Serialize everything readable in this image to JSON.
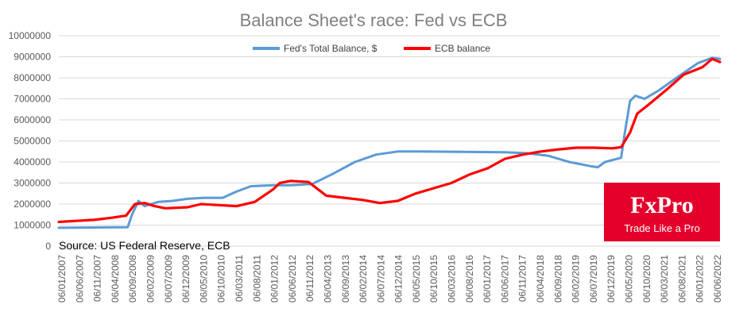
{
  "chart_data": {
    "type": "line",
    "title": "Balance Sheet's race: Fed vs ECB",
    "xlabel": "",
    "ylabel": "",
    "ylim": [
      0,
      10000000
    ],
    "yticks": [
      0,
      1000000,
      2000000,
      3000000,
      4000000,
      5000000,
      6000000,
      7000000,
      8000000,
      9000000,
      10000000
    ],
    "ytick_labels": [
      "0",
      "1000000",
      "2000000",
      "3000000",
      "4000000",
      "5000000",
      "6000000",
      "7000000",
      "8000000",
      "9000000",
      "10000000"
    ],
    "xlim": [
      "2007-01-06",
      "2022-06-06"
    ],
    "xtick_labels": [
      "06/01/2007",
      "06/06/2007",
      "06/11/2007",
      "06/04/2008",
      "06/09/2008",
      "06/02/2009",
      "06/07/2009",
      "06/12/2009",
      "06/05/2010",
      "06/10/2010",
      "06/03/2011",
      "06/08/2011",
      "06/01/2012",
      "06/06/2012",
      "06/11/2012",
      "06/04/2013",
      "06/09/2013",
      "06/02/2014",
      "06/07/2014",
      "06/12/2014",
      "06/05/2015",
      "06/10/2015",
      "06/03/2016",
      "06/08/2016",
      "06/01/2017",
      "06/06/2017",
      "06/11/2017",
      "06/04/2018",
      "06/09/2018",
      "06/02/2019",
      "06/07/2019",
      "06/12/2019",
      "06/05/2020",
      "06/10/2020",
      "06/03/2021",
      "06/08/2021",
      "06/01/2022",
      "06/06/2022"
    ],
    "grid": true,
    "legend_position": "top",
    "annotation": "Source: US Federal Reserve, ECB",
    "series": [
      {
        "name": "Fed's Total Balance, $",
        "color": "#5b9bd5",
        "points": [
          [
            "2007-01-06",
            870000
          ],
          [
            "2008-08-15",
            900000
          ],
          [
            "2008-09-20",
            1500000
          ],
          [
            "2008-11-15",
            2150000
          ],
          [
            "2009-01-06",
            1900000
          ],
          [
            "2009-03-01",
            2000000
          ],
          [
            "2009-05-01",
            2100000
          ],
          [
            "2009-09-01",
            2150000
          ],
          [
            "2010-01-06",
            2250000
          ],
          [
            "2010-06-01",
            2300000
          ],
          [
            "2010-11-01",
            2300000
          ],
          [
            "2011-03-01",
            2600000
          ],
          [
            "2011-07-01",
            2850000
          ],
          [
            "2012-01-06",
            2900000
          ],
          [
            "2012-06-01",
            2900000
          ],
          [
            "2012-12-01",
            2950000
          ],
          [
            "2013-06-01",
            3450000
          ],
          [
            "2013-12-01",
            4000000
          ],
          [
            "2014-06-01",
            4350000
          ],
          [
            "2014-12-01",
            4500000
          ],
          [
            "2015-06-01",
            4500000
          ],
          [
            "2016-06-01",
            4480000
          ],
          [
            "2017-06-01",
            4460000
          ],
          [
            "2017-12-01",
            4420000
          ],
          [
            "2018-06-01",
            4300000
          ],
          [
            "2018-12-01",
            4000000
          ],
          [
            "2019-06-01",
            3800000
          ],
          [
            "2019-08-01",
            3750000
          ],
          [
            "2019-10-01",
            4000000
          ],
          [
            "2020-02-15",
            4200000
          ],
          [
            "2020-03-15",
            5300000
          ],
          [
            "2020-05-01",
            6900000
          ],
          [
            "2020-06-15",
            7150000
          ],
          [
            "2020-09-01",
            7000000
          ],
          [
            "2021-01-01",
            7400000
          ],
          [
            "2021-06-01",
            8000000
          ],
          [
            "2021-12-01",
            8700000
          ],
          [
            "2022-04-01",
            8950000
          ],
          [
            "2022-06-06",
            8900000
          ]
        ]
      },
      {
        "name": "ECB balance",
        "color": "#ff0000",
        "points": [
          [
            "2007-01-06",
            1150000
          ],
          [
            "2007-06-01",
            1200000
          ],
          [
            "2007-11-01",
            1250000
          ],
          [
            "2008-04-01",
            1350000
          ],
          [
            "2008-08-01",
            1450000
          ],
          [
            "2008-10-15",
            2000000
          ],
          [
            "2009-01-06",
            2050000
          ],
          [
            "2009-04-01",
            1900000
          ],
          [
            "2009-07-01",
            1800000
          ],
          [
            "2010-01-06",
            1850000
          ],
          [
            "2010-05-01",
            2000000
          ],
          [
            "2010-10-01",
            1950000
          ],
          [
            "2011-03-01",
            1900000
          ],
          [
            "2011-08-01",
            2100000
          ],
          [
            "2012-01-06",
            2700000
          ],
          [
            "2012-03-01",
            3000000
          ],
          [
            "2012-06-01",
            3100000
          ],
          [
            "2012-11-01",
            3050000
          ],
          [
            "2013-04-01",
            2400000
          ],
          [
            "2013-09-01",
            2300000
          ],
          [
            "2014-02-01",
            2200000
          ],
          [
            "2014-07-01",
            2050000
          ],
          [
            "2014-12-01",
            2150000
          ],
          [
            "2015-05-01",
            2500000
          ],
          [
            "2015-10-01",
            2750000
          ],
          [
            "2016-03-01",
            3000000
          ],
          [
            "2016-08-01",
            3400000
          ],
          [
            "2017-01-06",
            3700000
          ],
          [
            "2017-06-01",
            4150000
          ],
          [
            "2017-11-01",
            4350000
          ],
          [
            "2018-04-01",
            4500000
          ],
          [
            "2018-09-01",
            4600000
          ],
          [
            "2019-02-01",
            4680000
          ],
          [
            "2019-07-01",
            4680000
          ],
          [
            "2019-12-01",
            4650000
          ],
          [
            "2020-02-15",
            4700000
          ],
          [
            "2020-05-01",
            5400000
          ],
          [
            "2020-07-01",
            6300000
          ],
          [
            "2020-10-01",
            6700000
          ],
          [
            "2021-03-01",
            7400000
          ],
          [
            "2021-08-01",
            8150000
          ],
          [
            "2022-01-06",
            8500000
          ],
          [
            "2022-04-01",
            8900000
          ],
          [
            "2022-06-06",
            8750000
          ]
        ]
      }
    ]
  },
  "watermark": {
    "brand": "FxPro",
    "tagline": "Trade Like a Pro",
    "background": "#e4002b"
  }
}
